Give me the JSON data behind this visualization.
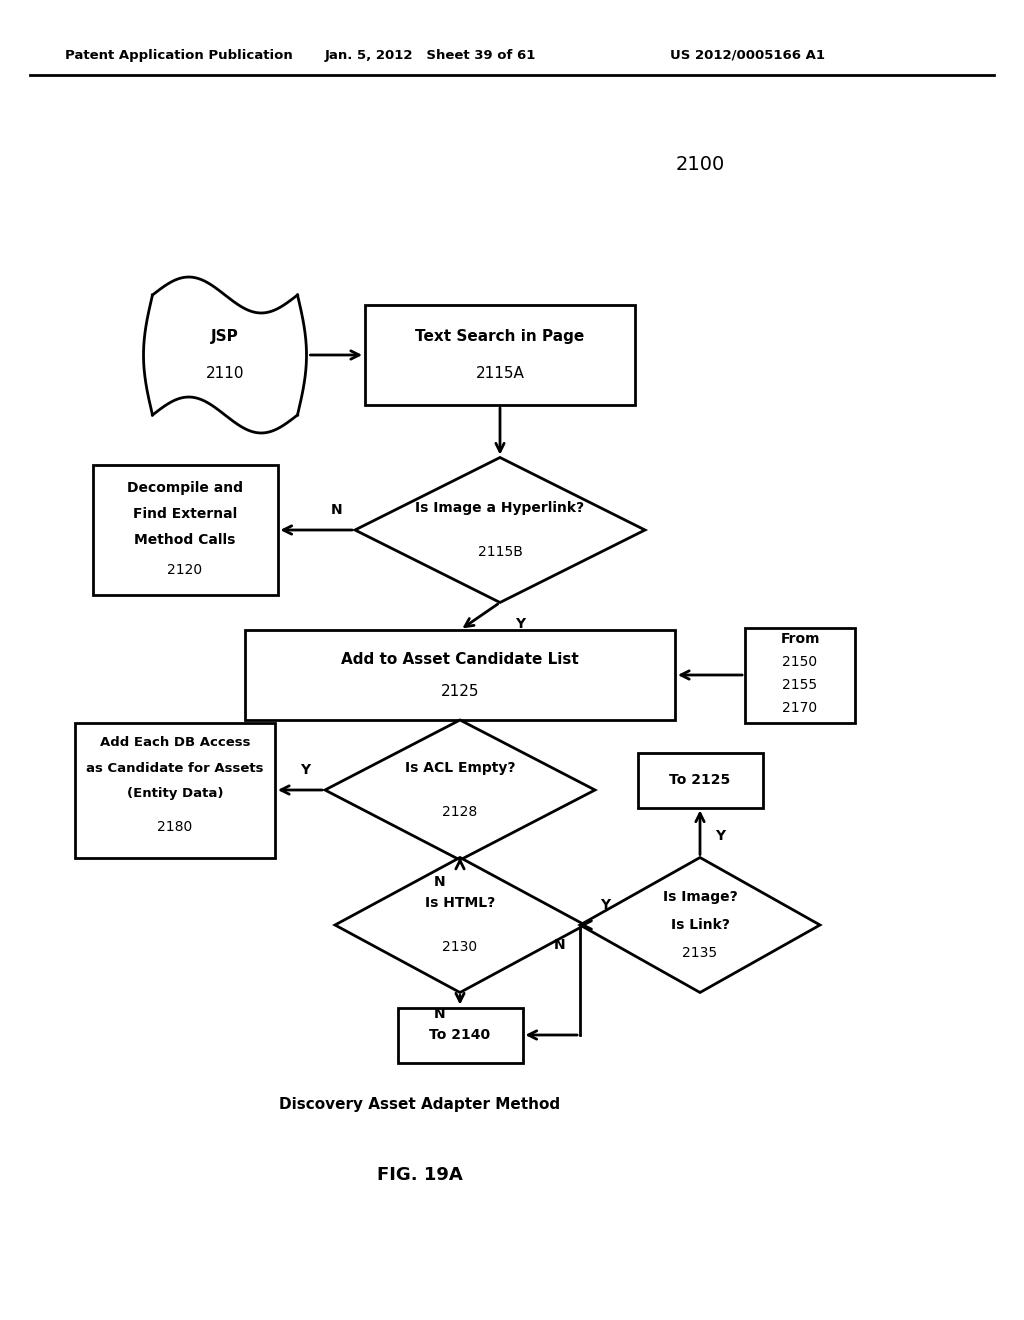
{
  "title_label": "2100",
  "header_left": "Patent Application Publication",
  "header_center": "Jan. 5, 2012   Sheet 39 of 61",
  "header_right": "US 2012/0005166 A1",
  "caption": "Discovery Asset Adapter Method",
  "fig_label": "FIG. 19A",
  "bg_color": "#ffffff"
}
